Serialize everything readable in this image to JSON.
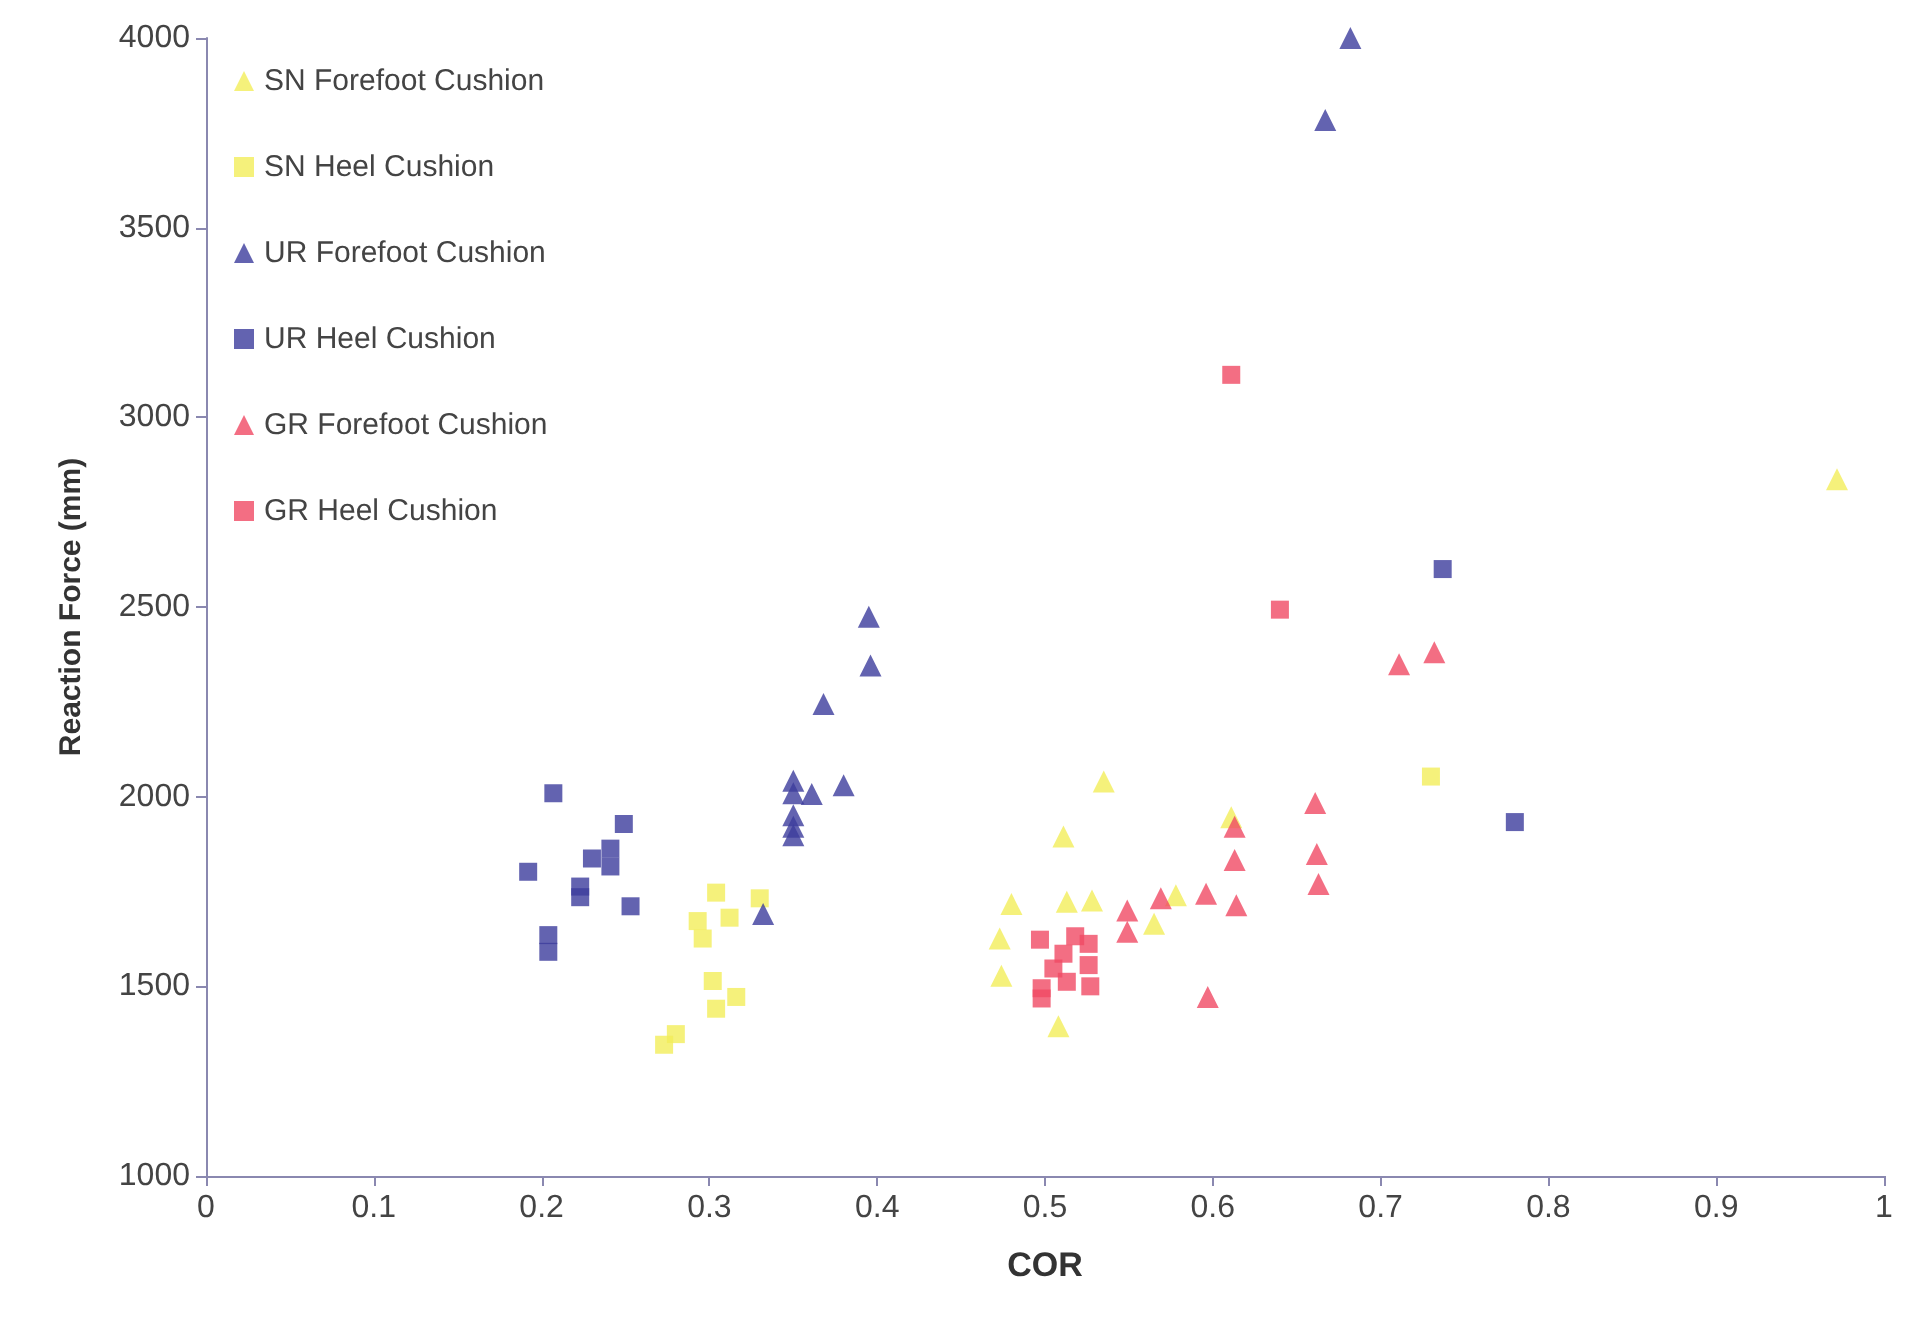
{
  "chart_data": {
    "type": "scatter",
    "xlabel": "COR",
    "ylabel": "Reaction Force (mm)",
    "xlim": [
      0,
      1
    ],
    "ylim": [
      1000,
      4000
    ],
    "xticks": [
      0,
      0.1,
      0.2,
      0.3,
      0.4,
      0.5,
      0.6,
      0.7,
      0.8,
      0.9,
      1
    ],
    "yticks": [
      1000,
      1500,
      2000,
      2500,
      3000,
      3500,
      4000
    ],
    "grid": false,
    "legend": "top left",
    "series": [
      {
        "name": "SN Forefoot Cushion",
        "color": "#f2ee5a",
        "marker": "triangle",
        "x": [
          0.535,
          0.511,
          0.48,
          0.513,
          0.528,
          0.473,
          0.474,
          0.508,
          0.565,
          0.578,
          0.611,
          0.972
        ],
        "values": [
          2040,
          1895,
          1717,
          1723,
          1726,
          1626,
          1528,
          1395,
          1665,
          1740,
          1946,
          2837
        ]
      },
      {
        "name": "SN Heel Cushion",
        "color": "#f2ee5a",
        "marker": "square",
        "x": [
          0.304,
          0.33,
          0.293,
          0.312,
          0.296,
          0.302,
          0.316,
          0.304,
          0.28,
          0.273,
          0.73
        ],
        "values": [
          1747,
          1732,
          1672,
          1681,
          1626,
          1514,
          1472,
          1441,
          1374,
          1346,
          2053
        ]
      },
      {
        "name": "UR Forefoot Cushion",
        "color": "#3c3c9c",
        "marker": "triangle",
        "x": [
          0.395,
          0.396,
          0.368,
          0.38,
          0.361,
          0.35,
          0.35,
          0.35,
          0.35,
          0.35,
          0.332,
          0.682,
          0.667
        ],
        "values": [
          2474,
          2346,
          2244,
          2030,
          2007,
          2042,
          2009,
          1951,
          1921,
          1898,
          1691,
          4000,
          3784
        ]
      },
      {
        "name": "UR Heel Cushion",
        "color": "#3c3c9c",
        "marker": "square",
        "x": [
          0.207,
          0.249,
          0.23,
          0.241,
          0.241,
          0.192,
          0.223,
          0.223,
          0.253,
          0.204,
          0.204,
          0.737,
          0.78
        ],
        "values": [
          2009,
          1928,
          1837,
          1863,
          1816,
          1802,
          1763,
          1735,
          1711,
          1635,
          1591,
          2600,
          1933
        ]
      },
      {
        "name": "GR Forefoot Cushion",
        "color": "#f04a64",
        "marker": "triangle",
        "x": [
          0.549,
          0.549,
          0.569,
          0.596,
          0.613,
          0.613,
          0.614,
          0.597,
          0.661,
          0.662,
          0.663,
          0.711,
          0.732
        ],
        "values": [
          1700,
          1644,
          1732,
          1744,
          1921,
          1833,
          1714,
          1472,
          1983,
          1849,
          1770,
          2349,
          2381
        ]
      },
      {
        "name": "GR Heel Cushion",
        "color": "#f04a64",
        "marker": "square",
        "x": [
          0.497,
          0.498,
          0.498,
          0.518,
          0.511,
          0.526,
          0.505,
          0.526,
          0.513,
          0.527,
          0.611,
          0.64
        ],
        "values": [
          1623,
          1495,
          1468,
          1632,
          1586,
          1612,
          1547,
          1556,
          1512,
          1500,
          3112,
          2493
        ]
      }
    ]
  }
}
